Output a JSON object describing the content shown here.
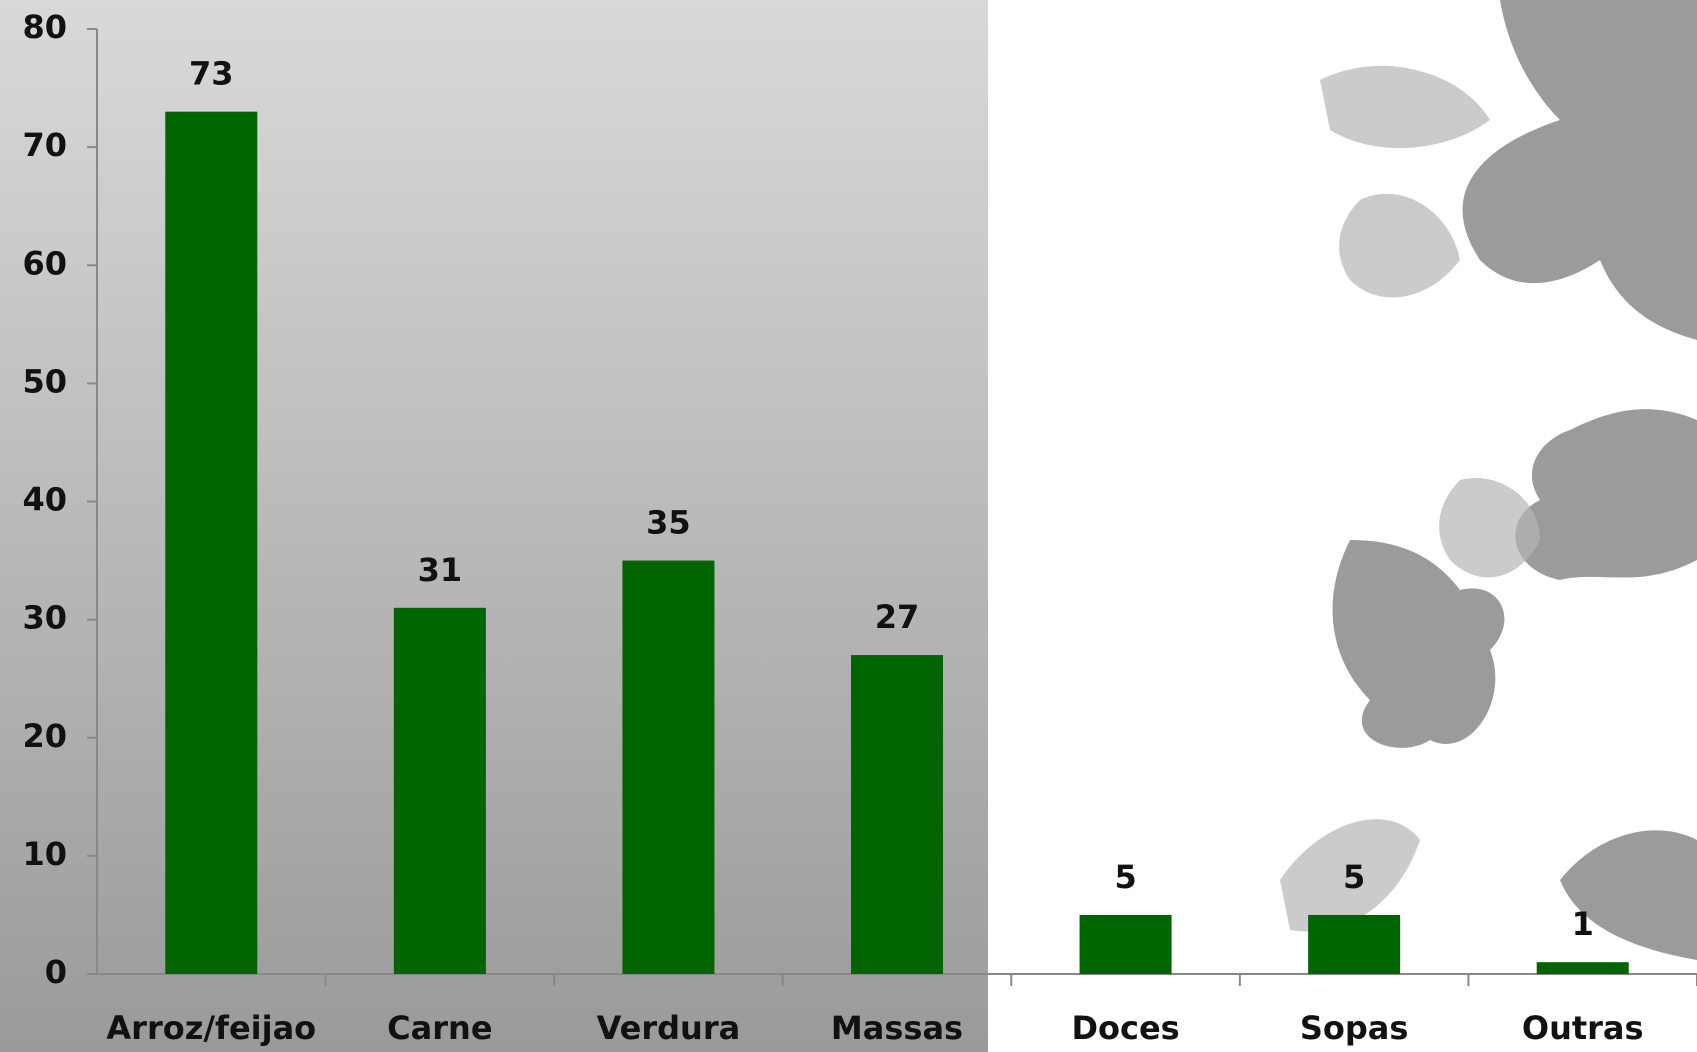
{
  "chart_data": {
    "type": "bar",
    "categories": [
      "Arroz/feijao",
      "Carne",
      "Verdura",
      "Massas",
      "Doces",
      "Sopas",
      "Outras"
    ],
    "values": [
      73,
      31,
      35,
      27,
      5,
      5,
      1
    ],
    "color": "#006400",
    "ylim": [
      0,
      80
    ],
    "yticks": [
      0,
      10,
      20,
      30,
      40,
      50,
      60,
      70,
      80
    ]
  }
}
